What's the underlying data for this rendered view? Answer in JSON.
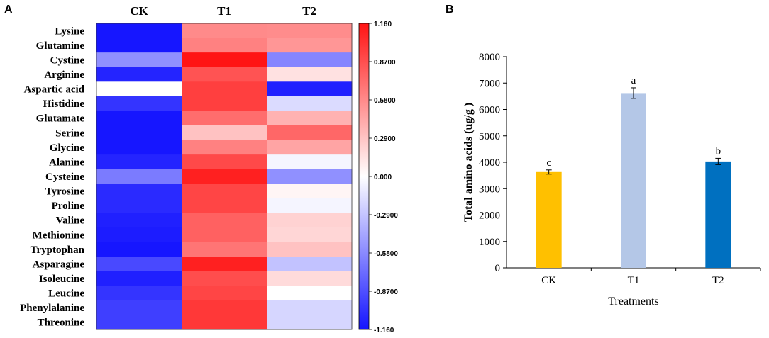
{
  "panels": {
    "a_label": "A",
    "b_label": "B"
  },
  "chart_data": [
    {
      "type": "heatmap",
      "columns": [
        "CK",
        "T1",
        "T2"
      ],
      "rows": [
        "Lysine",
        "Glutamine",
        "Cystine",
        "Arginine",
        "Aspartic acid",
        "Histidine",
        "Glutamate",
        "Serine",
        "Glycine",
        "Alanine",
        "Cysteine",
        "Tyrosine",
        "Proline",
        "Valine",
        "Methionine",
        "Tryptophan",
        "Asparagine",
        "Isoleucine",
        "Leucine",
        "Phenylalanine",
        "Threonine"
      ],
      "values": [
        [
          -1.15,
          0.58,
          0.57
        ],
        [
          -1.15,
          0.62,
          0.52
        ],
        [
          -0.55,
          1.16,
          -0.6
        ],
        [
          -1.08,
          0.85,
          0.15
        ],
        [
          0.0,
          0.95,
          -1.1
        ],
        [
          -1.0,
          0.95,
          -0.18
        ],
        [
          -1.15,
          0.72,
          0.38
        ],
        [
          -1.15,
          0.3,
          0.75
        ],
        [
          -1.15,
          0.62,
          0.45
        ],
        [
          -1.08,
          0.9,
          -0.05
        ],
        [
          -0.65,
          1.1,
          -0.55
        ],
        [
          -1.05,
          0.92,
          0.05
        ],
        [
          -1.05,
          0.92,
          -0.05
        ],
        [
          -1.1,
          0.78,
          0.22
        ],
        [
          -1.12,
          0.78,
          0.2
        ],
        [
          -1.15,
          0.68,
          0.3
        ],
        [
          -0.9,
          1.1,
          -0.3
        ],
        [
          -1.1,
          0.88,
          0.18
        ],
        [
          -1.0,
          0.92,
          0.0
        ],
        [
          -0.95,
          0.98,
          -0.2
        ],
        [
          -0.95,
          0.98,
          -0.2
        ]
      ],
      "colorbar": {
        "min": -1.16,
        "max": 1.16,
        "tick_values": [
          1.16,
          0.87,
          0.58,
          0.29,
          0.0,
          -0.29,
          -0.58,
          -0.87,
          -1.16
        ],
        "tick_labels": [
          "1.160",
          "0.8700",
          "0.5800",
          "0.2900",
          "0.000",
          "-0.2900",
          "-0.5800",
          "-0.8700",
          "-1.160"
        ],
        "low_color": "#1414ff",
        "mid_color": "#ffffff",
        "high_color": "#ff1414"
      }
    },
    {
      "type": "bar",
      "categories": [
        "CK",
        "T1",
        "T2"
      ],
      "values": [
        3630,
        6620,
        4030
      ],
      "errors": [
        80,
        200,
        120
      ],
      "significance": [
        "c",
        "a",
        "b"
      ],
      "colors": [
        "#ffc000",
        "#b4c7e7",
        "#0070c0"
      ],
      "xlabel": "Treatments",
      "ylabel": "Total amino acids (ug/g )",
      "ylim": [
        0,
        8000
      ],
      "yticks": [
        0,
        1000,
        2000,
        3000,
        4000,
        5000,
        6000,
        7000,
        8000
      ]
    }
  ]
}
